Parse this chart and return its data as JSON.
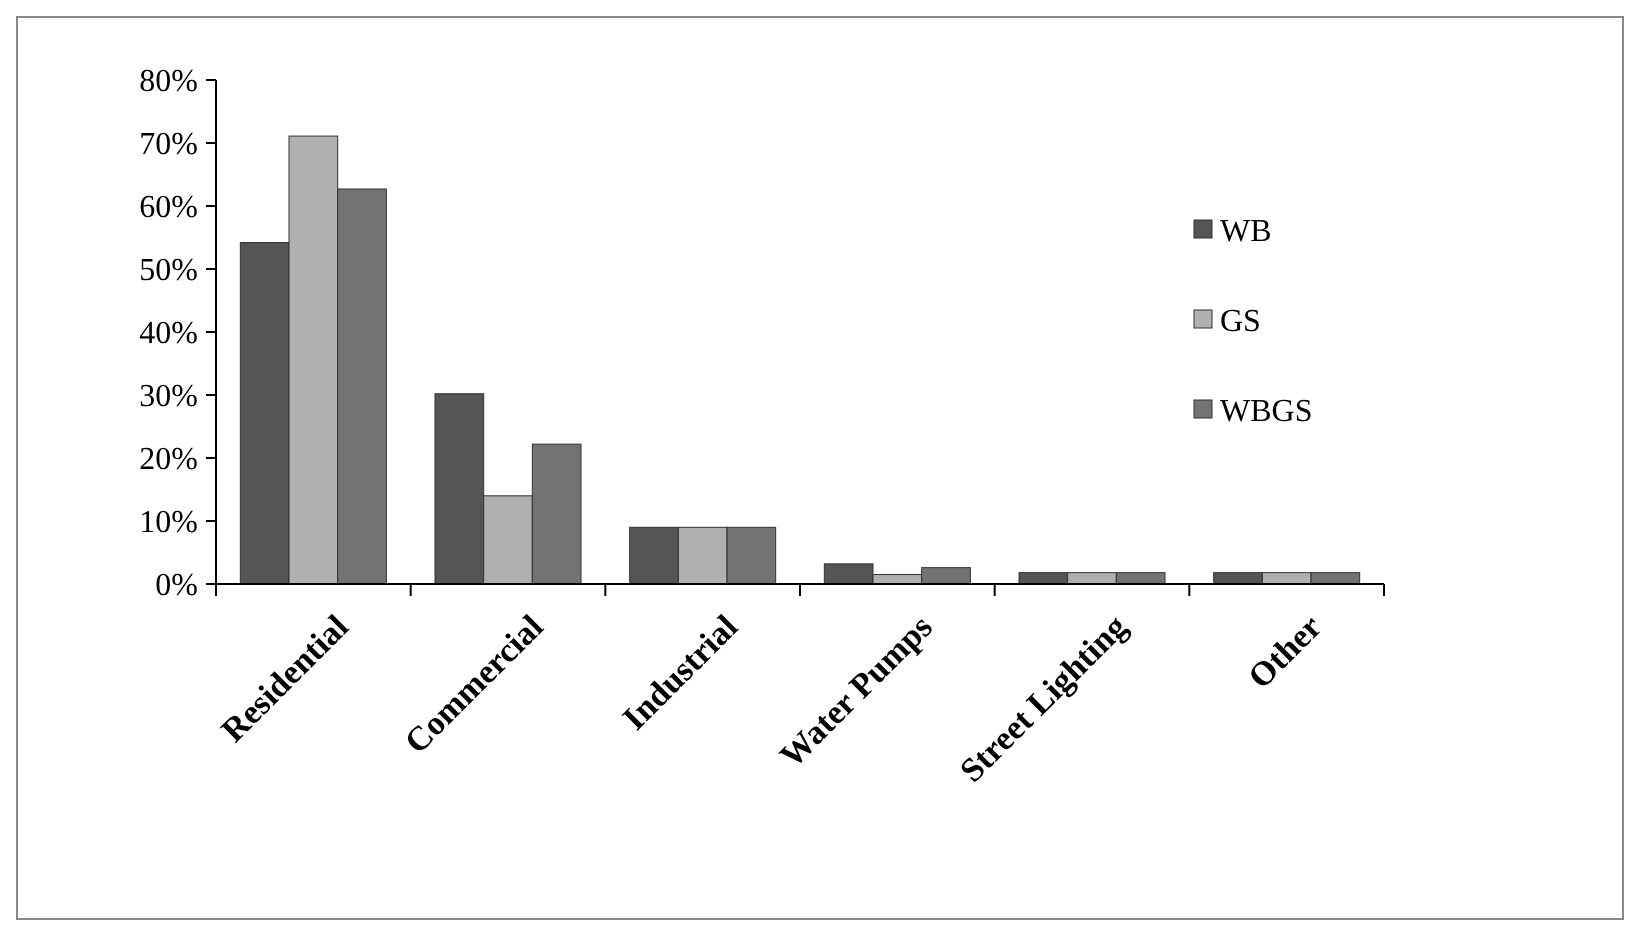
{
  "chart_data": {
    "type": "bar",
    "categories": [
      "Residential",
      "Commercial",
      "Industrial",
      "Water Pumps",
      "Street Lighting",
      "Other"
    ],
    "series": [
      {
        "name": "WB",
        "color": "#555555",
        "values": [
          54.2,
          30.2,
          9,
          3.2,
          1.8,
          1.8
        ]
      },
      {
        "name": "GS",
        "color": "#b0b0b0",
        "values": [
          71.1,
          14,
          9,
          1.5,
          1.8,
          1.8
        ]
      },
      {
        "name": "WBGS",
        "color": "#737373",
        "values": [
          62.7,
          22.2,
          9,
          2.6,
          1.8,
          1.8
        ]
      }
    ],
    "ylim": [
      0,
      80
    ],
    "yticks": [
      {
        "value": 0,
        "label": "0%"
      },
      {
        "value": 10,
        "label": "10%"
      },
      {
        "value": 20,
        "label": "20%"
      },
      {
        "value": 30,
        "label": "30%"
      },
      {
        "value": 40,
        "label": "40%"
      },
      {
        "value": 50,
        "label": "50%"
      },
      {
        "value": 60,
        "label": "60%"
      },
      {
        "value": 70,
        "label": "70%"
      },
      {
        "value": 80,
        "label": "80%"
      }
    ],
    "grid": false,
    "legend": "right"
  }
}
